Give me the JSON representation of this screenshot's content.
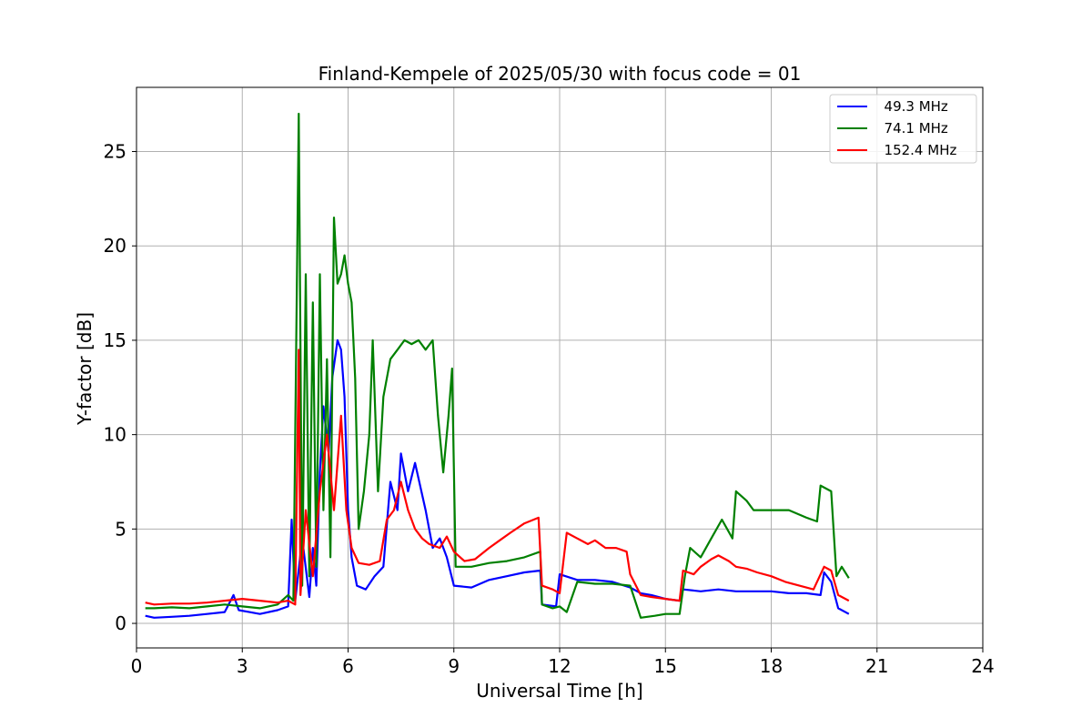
{
  "chart_data": {
    "type": "line",
    "title": "Finland-Kempele of 2025/05/30 with focus code = 01",
    "xlabel": "Universal Time [h]",
    "ylabel": "Y-factor [dB]",
    "xlim": [
      0,
      24
    ],
    "ylim": [
      -1.3,
      28.4
    ],
    "xticks": [
      0,
      3,
      6,
      9,
      12,
      15,
      18,
      21,
      24
    ],
    "yticks": [
      0,
      5,
      10,
      15,
      20,
      25
    ],
    "grid": true,
    "legend_position": "top-right",
    "series": [
      {
        "name": "  49.3 MHz",
        "color": "#0000ff",
        "points": [
          [
            0.25,
            0.4
          ],
          [
            0.5,
            0.3
          ],
          [
            1.0,
            0.35
          ],
          [
            1.5,
            0.4
          ],
          [
            2.0,
            0.5
          ],
          [
            2.5,
            0.6
          ],
          [
            2.75,
            1.5
          ],
          [
            2.9,
            0.7
          ],
          [
            3.2,
            0.6
          ],
          [
            3.5,
            0.5
          ],
          [
            4.0,
            0.7
          ],
          [
            4.3,
            0.9
          ],
          [
            4.4,
            5.5
          ],
          [
            4.5,
            1.2
          ],
          [
            4.7,
            4.5
          ],
          [
            4.9,
            1.4
          ],
          [
            5.0,
            4.0
          ],
          [
            5.1,
            2.0
          ],
          [
            5.2,
            8.0
          ],
          [
            5.3,
            11.5
          ],
          [
            5.45,
            9.0
          ],
          [
            5.55,
            13.0
          ],
          [
            5.7,
            15.0
          ],
          [
            5.8,
            14.5
          ],
          [
            5.9,
            12.0
          ],
          [
            6.0,
            6.0
          ],
          [
            6.1,
            3.5
          ],
          [
            6.25,
            2.0
          ],
          [
            6.5,
            1.8
          ],
          [
            6.75,
            2.5
          ],
          [
            7.0,
            3.0
          ],
          [
            7.2,
            7.5
          ],
          [
            7.4,
            6.0
          ],
          [
            7.5,
            9.0
          ],
          [
            7.7,
            7.0
          ],
          [
            7.9,
            8.5
          ],
          [
            8.2,
            6.0
          ],
          [
            8.4,
            4.0
          ],
          [
            8.6,
            4.5
          ],
          [
            8.8,
            3.5
          ],
          [
            9.0,
            2.0
          ],
          [
            9.5,
            1.9
          ],
          [
            10.0,
            2.3
          ],
          [
            10.5,
            2.5
          ],
          [
            11.0,
            2.7
          ],
          [
            11.45,
            2.8
          ],
          [
            11.5,
            1.0
          ],
          [
            11.9,
            0.9
          ],
          [
            12.0,
            2.6
          ],
          [
            12.5,
            2.3
          ],
          [
            13.0,
            2.3
          ],
          [
            13.5,
            2.2
          ],
          [
            14.0,
            1.9
          ],
          [
            14.3,
            1.6
          ],
          [
            14.6,
            1.5
          ],
          [
            15.0,
            1.3
          ],
          [
            15.4,
            1.2
          ],
          [
            15.5,
            1.8
          ],
          [
            16.0,
            1.7
          ],
          [
            16.5,
            1.8
          ],
          [
            17.0,
            1.7
          ],
          [
            17.5,
            1.7
          ],
          [
            18.0,
            1.7
          ],
          [
            18.5,
            1.6
          ],
          [
            19.0,
            1.6
          ],
          [
            19.4,
            1.5
          ],
          [
            19.5,
            2.7
          ],
          [
            19.7,
            2.2
          ],
          [
            19.9,
            0.8
          ],
          [
            20.2,
            0.5
          ]
        ]
      },
      {
        "name": "  74.1 MHz",
        "color": "#008000",
        "points": [
          [
            0.25,
            0.8
          ],
          [
            0.5,
            0.8
          ],
          [
            1.0,
            0.85
          ],
          [
            1.5,
            0.8
          ],
          [
            2.0,
            0.9
          ],
          [
            2.5,
            1.0
          ],
          [
            3.0,
            0.9
          ],
          [
            3.5,
            0.8
          ],
          [
            4.0,
            1.0
          ],
          [
            4.3,
            1.5
          ],
          [
            4.45,
            1.2
          ],
          [
            4.6,
            27.0
          ],
          [
            4.7,
            2.0
          ],
          [
            4.8,
            18.5
          ],
          [
            4.9,
            2.5
          ],
          [
            5.0,
            17.0
          ],
          [
            5.1,
            3.0
          ],
          [
            5.2,
            18.5
          ],
          [
            5.3,
            6.0
          ],
          [
            5.4,
            14.0
          ],
          [
            5.5,
            3.5
          ],
          [
            5.6,
            21.5
          ],
          [
            5.7,
            18.0
          ],
          [
            5.8,
            18.5
          ],
          [
            5.9,
            19.5
          ],
          [
            6.0,
            18.0
          ],
          [
            6.1,
            17.0
          ],
          [
            6.2,
            13.0
          ],
          [
            6.3,
            5.0
          ],
          [
            6.45,
            7.0
          ],
          [
            6.6,
            10.0
          ],
          [
            6.7,
            15.0
          ],
          [
            6.85,
            7.0
          ],
          [
            7.0,
            12.0
          ],
          [
            7.2,
            14.0
          ],
          [
            7.4,
            14.5
          ],
          [
            7.6,
            15.0
          ],
          [
            7.8,
            14.8
          ],
          [
            8.0,
            15.0
          ],
          [
            8.2,
            14.5
          ],
          [
            8.4,
            15.0
          ],
          [
            8.55,
            11.0
          ],
          [
            8.7,
            8.0
          ],
          [
            8.85,
            11.0
          ],
          [
            8.95,
            13.5
          ],
          [
            9.05,
            3.0
          ],
          [
            9.5,
            3.0
          ],
          [
            10.0,
            3.2
          ],
          [
            10.5,
            3.3
          ],
          [
            11.0,
            3.5
          ],
          [
            11.45,
            3.8
          ],
          [
            11.5,
            1.0
          ],
          [
            11.8,
            0.8
          ],
          [
            12.0,
            0.9
          ],
          [
            12.2,
            0.6
          ],
          [
            12.5,
            2.2
          ],
          [
            13.0,
            2.1
          ],
          [
            13.5,
            2.1
          ],
          [
            14.0,
            2.0
          ],
          [
            14.3,
            0.3
          ],
          [
            14.7,
            0.4
          ],
          [
            15.0,
            0.5
          ],
          [
            15.4,
            0.5
          ],
          [
            15.55,
            2.5
          ],
          [
            15.7,
            4.0
          ],
          [
            16.0,
            3.5
          ],
          [
            16.3,
            4.5
          ],
          [
            16.6,
            5.5
          ],
          [
            16.9,
            4.5
          ],
          [
            17.0,
            7.0
          ],
          [
            17.3,
            6.5
          ],
          [
            17.5,
            6.0
          ],
          [
            18.0,
            6.0
          ],
          [
            18.5,
            6.0
          ],
          [
            19.0,
            5.6
          ],
          [
            19.3,
            5.4
          ],
          [
            19.4,
            7.3
          ],
          [
            19.7,
            7.0
          ],
          [
            19.85,
            2.5
          ],
          [
            20.0,
            3.0
          ],
          [
            20.2,
            2.4
          ]
        ]
      },
      {
        "name": "  152.4 MHz",
        "color": "#ff0000",
        "points": [
          [
            0.25,
            1.1
          ],
          [
            0.5,
            1.0
          ],
          [
            1.0,
            1.05
          ],
          [
            1.5,
            1.05
          ],
          [
            2.0,
            1.1
          ],
          [
            2.5,
            1.2
          ],
          [
            3.0,
            1.3
          ],
          [
            3.5,
            1.2
          ],
          [
            4.0,
            1.1
          ],
          [
            4.3,
            1.2
          ],
          [
            4.5,
            1.0
          ],
          [
            4.6,
            14.5
          ],
          [
            4.65,
            1.5
          ],
          [
            4.8,
            6.0
          ],
          [
            5.0,
            2.5
          ],
          [
            5.2,
            7.0
          ],
          [
            5.4,
            10.0
          ],
          [
            5.6,
            6.0
          ],
          [
            5.8,
            11.0
          ],
          [
            5.95,
            6.0
          ],
          [
            6.1,
            4.0
          ],
          [
            6.3,
            3.2
          ],
          [
            6.6,
            3.1
          ],
          [
            6.9,
            3.3
          ],
          [
            7.1,
            5.5
          ],
          [
            7.3,
            6.0
          ],
          [
            7.5,
            7.5
          ],
          [
            7.7,
            6.0
          ],
          [
            7.9,
            5.0
          ],
          [
            8.1,
            4.5
          ],
          [
            8.3,
            4.2
          ],
          [
            8.6,
            4.0
          ],
          [
            8.8,
            4.6
          ],
          [
            9.0,
            3.8
          ],
          [
            9.3,
            3.3
          ],
          [
            9.6,
            3.4
          ],
          [
            10.0,
            4.0
          ],
          [
            10.3,
            4.4
          ],
          [
            10.6,
            4.8
          ],
          [
            11.0,
            5.3
          ],
          [
            11.4,
            5.6
          ],
          [
            11.5,
            2.0
          ],
          [
            11.8,
            1.8
          ],
          [
            12.0,
            1.6
          ],
          [
            12.2,
            4.8
          ],
          [
            12.5,
            4.5
          ],
          [
            12.8,
            4.2
          ],
          [
            13.0,
            4.4
          ],
          [
            13.3,
            4.0
          ],
          [
            13.6,
            4.0
          ],
          [
            13.9,
            3.8
          ],
          [
            14.0,
            2.6
          ],
          [
            14.3,
            1.5
          ],
          [
            14.6,
            1.4
          ],
          [
            15.0,
            1.3
          ],
          [
            15.4,
            1.2
          ],
          [
            15.5,
            2.8
          ],
          [
            15.8,
            2.6
          ],
          [
            16.0,
            3.0
          ],
          [
            16.3,
            3.4
          ],
          [
            16.5,
            3.6
          ],
          [
            16.8,
            3.3
          ],
          [
            17.0,
            3.0
          ],
          [
            17.3,
            2.9
          ],
          [
            17.6,
            2.7
          ],
          [
            18.0,
            2.5
          ],
          [
            18.4,
            2.2
          ],
          [
            18.8,
            2.0
          ],
          [
            19.2,
            1.8
          ],
          [
            19.5,
            3.0
          ],
          [
            19.7,
            2.8
          ],
          [
            19.9,
            1.5
          ],
          [
            20.2,
            1.2
          ]
        ]
      }
    ]
  }
}
